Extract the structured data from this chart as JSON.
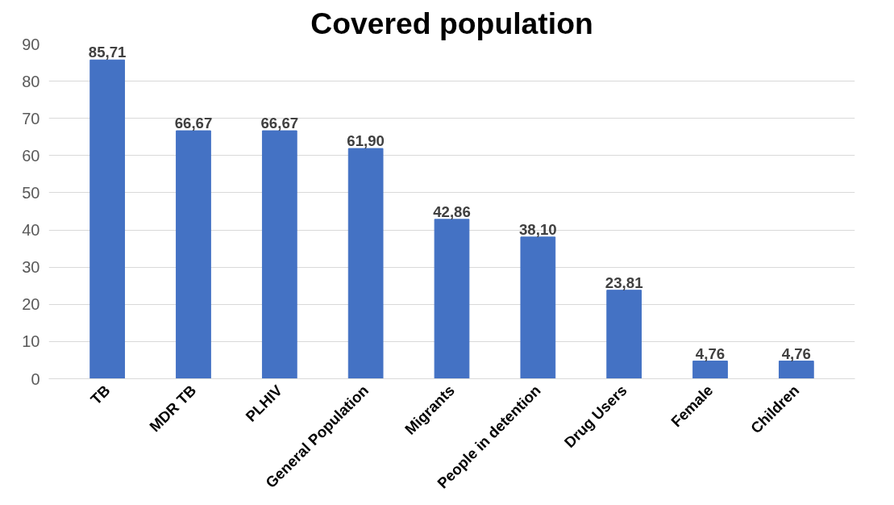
{
  "chart_data": {
    "type": "bar",
    "title": "Covered population",
    "categories": [
      "TB",
      "MDR TB",
      "PLHIV",
      "General Population",
      "Migrants",
      "People in detention",
      "Drug Users",
      "Female",
      "Children"
    ],
    "values": [
      85.71,
      66.67,
      66.67,
      61.9,
      42.86,
      38.1,
      23.81,
      4.76,
      4.76
    ],
    "value_labels": [
      "85,71",
      "66,67",
      "66,67",
      "61,90",
      "42,86",
      "38,10",
      "23,81",
      "4,76",
      "4,76"
    ],
    "color": "#4472c4",
    "ylim": [
      0,
      90
    ],
    "yticks": [
      0,
      10,
      20,
      30,
      40,
      50,
      60,
      70,
      80,
      90
    ],
    "grid": "y"
  }
}
